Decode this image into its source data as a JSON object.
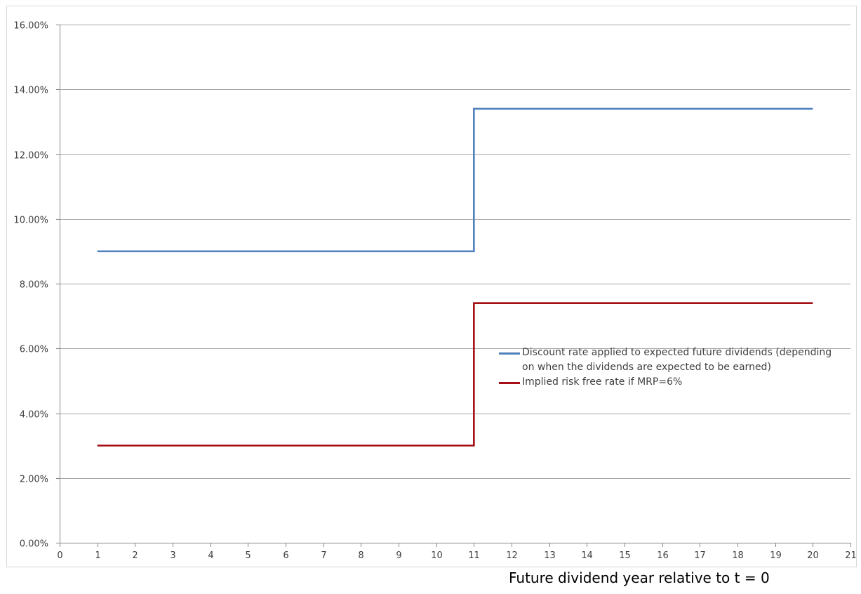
{
  "chart_data": {
    "type": "line",
    "step": true,
    "title": "",
    "xlabel": "Future dividend year relative to t = 0",
    "ylabel": "",
    "xlim": [
      0,
      21
    ],
    "ylim": [
      0,
      0.16
    ],
    "x_ticks": [
      0,
      1,
      2,
      3,
      4,
      5,
      6,
      7,
      8,
      9,
      10,
      11,
      12,
      13,
      14,
      15,
      16,
      17,
      18,
      19,
      20,
      21
    ],
    "y_ticks": [
      "0.00%",
      "2.00%",
      "4.00%",
      "6.00%",
      "8.00%",
      "10.00%",
      "12.00%",
      "14.00%",
      "16.00%"
    ],
    "y_tick_values": [
      0,
      0.02,
      0.04,
      0.06,
      0.08,
      0.1,
      0.12,
      0.14,
      0.16
    ],
    "grid": "horizontal",
    "legend_position": "center-right",
    "x": [
      1,
      2,
      3,
      4,
      5,
      6,
      7,
      8,
      9,
      10,
      11,
      12,
      13,
      14,
      15,
      16,
      17,
      18,
      19,
      20
    ],
    "series": [
      {
        "name": "Discount rate applied to expected future dividends (depending on when the dividends are expected to be earned)",
        "color": "#4f81bd",
        "values": [
          0.09,
          0.09,
          0.09,
          0.09,
          0.09,
          0.09,
          0.09,
          0.09,
          0.09,
          0.09,
          0.134,
          0.134,
          0.134,
          0.134,
          0.134,
          0.134,
          0.134,
          0.134,
          0.134,
          0.134
        ]
      },
      {
        "name": "Implied risk free rate if MRP=6%",
        "color": "#a50f15",
        "values": [
          0.03,
          0.03,
          0.03,
          0.03,
          0.03,
          0.03,
          0.03,
          0.03,
          0.03,
          0.03,
          0.074,
          0.074,
          0.074,
          0.074,
          0.074,
          0.074,
          0.074,
          0.074,
          0.074,
          0.074
        ]
      }
    ]
  }
}
